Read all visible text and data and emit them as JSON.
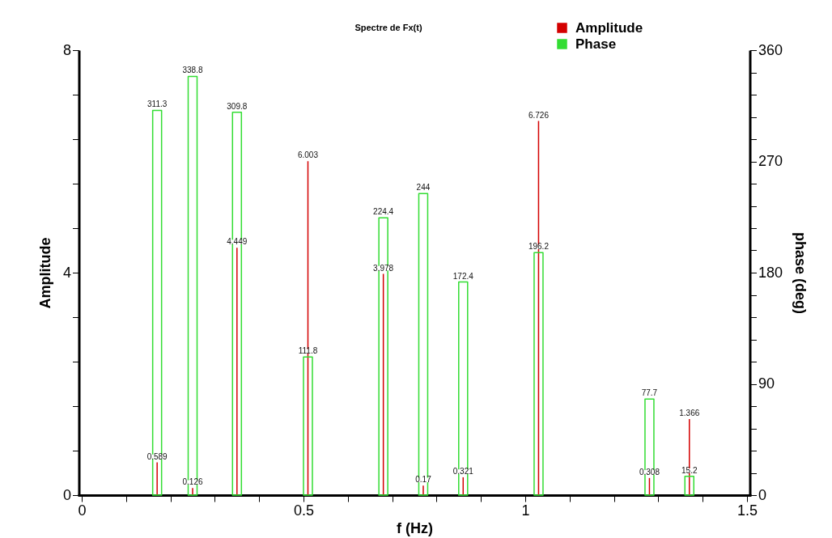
{
  "chart_data": {
    "type": "bar",
    "title": "Spectre de Fx(t)",
    "xlabel": "f (Hz)",
    "ylabel": "Amplitude",
    "y2label": "phase (deg)",
    "x": [
      0.17,
      0.25,
      0.35,
      0.51,
      0.68,
      0.77,
      0.86,
      1.03,
      1.28,
      1.37
    ],
    "series": [
      {
        "name": "Amplitude",
        "color": "#d40000",
        "values": [
          0.589,
          0.126,
          4.449,
          6.003,
          3.978,
          0.17,
          0.321,
          6.726,
          0.308,
          1.366
        ]
      },
      {
        "name": "Phase",
        "axis": "y2",
        "color": "#33dd33",
        "values": [
          311.3,
          338.8,
          309.8,
          111.8,
          224.4,
          244,
          172.4,
          196.2,
          77.7,
          15.2
        ]
      }
    ],
    "xlim": [
      0,
      1.5
    ],
    "xticks": [
      0,
      {
        "value": 0.1,
        "label": null
      },
      {
        "value": 0.2,
        "label": null
      },
      {
        "value": 0.3,
        "label": null
      },
      {
        "value": 0.4,
        "label": null
      },
      0.5,
      {
        "value": 0.6,
        "label": null
      },
      {
        "value": 0.7,
        "label": null
      },
      {
        "value": 0.8,
        "label": null
      },
      {
        "value": 0.9,
        "label": null
      },
      1,
      {
        "value": 1.1,
        "label": null
      },
      {
        "value": 1.2,
        "label": null
      },
      {
        "value": 1.3,
        "label": null
      },
      {
        "value": 1.4,
        "label": null
      },
      1.5
    ],
    "ylim": [
      0,
      8
    ],
    "yticks": [
      0,
      {
        "value": 0.8,
        "label": null
      },
      {
        "value": 1.6,
        "label": null
      },
      {
        "value": 2.4,
        "label": null
      },
      {
        "value": 3.2,
        "label": null
      },
      4,
      {
        "value": 4.8,
        "label": null
      },
      {
        "value": 5.6,
        "label": null
      },
      {
        "value": 6.4,
        "label": null
      },
      {
        "value": 7.2,
        "label": null
      },
      8
    ],
    "y2lim": [
      0,
      360
    ],
    "y2ticks": [
      0,
      {
        "value": 18,
        "label": null
      },
      {
        "value": 36,
        "label": null
      },
      {
        "value": 54,
        "label": null
      },
      {
        "value": 72,
        "label": null
      },
      90,
      {
        "value": 108,
        "label": null
      },
      {
        "value": 126,
        "label": null
      },
      {
        "value": 144,
        "label": null
      },
      {
        "value": 162,
        "label": null
      },
      180,
      {
        "value": 198,
        "label": null
      },
      {
        "value": 216,
        "label": null
      },
      {
        "value": 234,
        "label": null
      },
      {
        "value": 252,
        "label": null
      },
      270,
      {
        "value": 288,
        "label": null
      },
      {
        "value": 306,
        "label": null
      },
      {
        "value": 324,
        "label": null
      },
      {
        "value": 342,
        "label": null
      },
      360
    ],
    "data_labels": true,
    "grid": false,
    "legend": "top right"
  }
}
